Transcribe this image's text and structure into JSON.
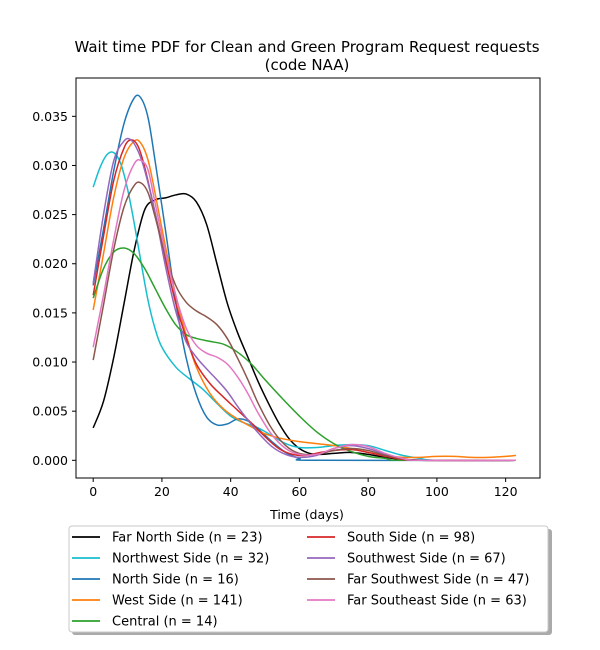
{
  "chart_data": {
    "type": "line",
    "title_line1": "Wait time PDF for Clean and Green Program Request  requests",
    "title_line2": "(code NAA)",
    "xlabel": "Time (days)",
    "ylabel": "",
    "xlim": [
      -5,
      130
    ],
    "ylim": [
      -0.0018,
      0.0389
    ],
    "xticks": [
      0,
      20,
      40,
      60,
      80,
      100,
      120
    ],
    "yticks": [
      0.0,
      0.005,
      0.01,
      0.015,
      0.02,
      0.025,
      0.03,
      0.035
    ],
    "ytick_labels": [
      "0.000",
      "0.005",
      "0.010",
      "0.015",
      "0.020",
      "0.025",
      "0.030",
      "0.035"
    ],
    "grid": false,
    "legend_position": "below",
    "legend_columns": 2,
    "series": [
      {
        "name": "Far North Side (n = 23)",
        "color": "#000000",
        "points": [
          [
            0,
            0.0033
          ],
          [
            3,
            0.006
          ],
          [
            6,
            0.0105
          ],
          [
            9,
            0.016
          ],
          [
            12,
            0.0215
          ],
          [
            15,
            0.0255
          ],
          [
            18,
            0.0265
          ],
          [
            21,
            0.0267
          ],
          [
            24,
            0.027
          ],
          [
            27,
            0.0271
          ],
          [
            30,
            0.0263
          ],
          [
            33,
            0.024
          ],
          [
            36,
            0.02
          ],
          [
            39,
            0.016
          ],
          [
            42,
            0.013
          ],
          [
            45,
            0.0105
          ],
          [
            48,
            0.008
          ],
          [
            51,
            0.0058
          ],
          [
            54,
            0.0038
          ],
          [
            57,
            0.0022
          ],
          [
            60,
            0.0012
          ],
          [
            63,
            0.0007
          ],
          [
            66,
            0.0006
          ],
          [
            70,
            0.0007
          ],
          [
            75,
            0.0008
          ],
          [
            80,
            0.0006
          ],
          [
            85,
            0.0003
          ],
          [
            90,
            0.0001
          ],
          [
            100,
            0.0
          ],
          [
            123,
            0.0
          ]
        ]
      },
      {
        "name": "Northwest Side (n = 32)",
        "color": "#17becf",
        "points": [
          [
            0,
            0.0278
          ],
          [
            2,
            0.0298
          ],
          [
            4,
            0.0311
          ],
          [
            6,
            0.0313
          ],
          [
            8,
            0.0302
          ],
          [
            10,
            0.0276
          ],
          [
            12,
            0.024
          ],
          [
            14,
            0.02
          ],
          [
            16,
            0.0162
          ],
          [
            18,
            0.0134
          ],
          [
            20,
            0.0115
          ],
          [
            24,
            0.0095
          ],
          [
            28,
            0.0083
          ],
          [
            32,
            0.0072
          ],
          [
            36,
            0.0058
          ],
          [
            40,
            0.0045
          ],
          [
            44,
            0.0038
          ],
          [
            48,
            0.0033
          ],
          [
            52,
            0.0025
          ],
          [
            56,
            0.0017
          ],
          [
            60,
            0.0013
          ],
          [
            65,
            0.0013
          ],
          [
            70,
            0.0015
          ],
          [
            75,
            0.0016
          ],
          [
            80,
            0.0015
          ],
          [
            85,
            0.001
          ],
          [
            90,
            0.0005
          ],
          [
            95,
            0.0002
          ],
          [
            100,
            0.0
          ],
          [
            123,
            0.0
          ]
        ]
      },
      {
        "name": "North Side (n = 16)",
        "color": "#1f77b4",
        "points": [
          [
            0,
            0.0178
          ],
          [
            3,
            0.0235
          ],
          [
            6,
            0.0295
          ],
          [
            9,
            0.0343
          ],
          [
            12,
            0.0369
          ],
          [
            14,
            0.0368
          ],
          [
            16,
            0.0348
          ],
          [
            18,
            0.0305
          ],
          [
            21,
            0.0235
          ],
          [
            24,
            0.0162
          ],
          [
            27,
            0.0105
          ],
          [
            30,
            0.0067
          ],
          [
            33,
            0.0044
          ],
          [
            36,
            0.0036
          ],
          [
            39,
            0.0037
          ],
          [
            42,
            0.0042
          ],
          [
            45,
            0.004
          ],
          [
            48,
            0.0032
          ],
          [
            52,
            0.0019
          ],
          [
            56,
            0.0008
          ],
          [
            60,
            0.0002
          ],
          [
            65,
            0.0
          ],
          [
            123,
            0.0
          ]
        ]
      },
      {
        "name": "West Side (n = 141)",
        "color": "#ff7f0e",
        "points": [
          [
            0,
            0.0153
          ],
          [
            3,
            0.021
          ],
          [
            6,
            0.0268
          ],
          [
            9,
            0.0308
          ],
          [
            12,
            0.0325
          ],
          [
            14,
            0.0322
          ],
          [
            16,
            0.0305
          ],
          [
            18,
            0.0272
          ],
          [
            21,
            0.0218
          ],
          [
            24,
            0.0168
          ],
          [
            27,
            0.0128
          ],
          [
            30,
            0.0095
          ],
          [
            34,
            0.0068
          ],
          [
            38,
            0.0052
          ],
          [
            42,
            0.0042
          ],
          [
            46,
            0.0034
          ],
          [
            50,
            0.0027
          ],
          [
            55,
            0.0022
          ],
          [
            60,
            0.0019
          ],
          [
            65,
            0.0017
          ],
          [
            70,
            0.0015
          ],
          [
            75,
            0.0012
          ],
          [
            80,
            0.0008
          ],
          [
            85,
            0.0005
          ],
          [
            90,
            0.0003
          ],
          [
            95,
            0.0003
          ],
          [
            100,
            0.0004
          ],
          [
            105,
            0.0004
          ],
          [
            110,
            0.0003
          ],
          [
            115,
            0.0003
          ],
          [
            120,
            0.0004
          ],
          [
            123,
            0.0005
          ]
        ]
      },
      {
        "name": "Central (n = 14)",
        "color": "#2ca02c",
        "points": [
          [
            0,
            0.0165
          ],
          [
            3,
            0.0195
          ],
          [
            6,
            0.0212
          ],
          [
            9,
            0.0216
          ],
          [
            12,
            0.021
          ],
          [
            15,
            0.0195
          ],
          [
            18,
            0.0175
          ],
          [
            21,
            0.0155
          ],
          [
            24,
            0.0138
          ],
          [
            27,
            0.0128
          ],
          [
            30,
            0.0124
          ],
          [
            34,
            0.0121
          ],
          [
            38,
            0.0118
          ],
          [
            42,
            0.011
          ],
          [
            46,
            0.0098
          ],
          [
            50,
            0.0082
          ],
          [
            55,
            0.0063
          ],
          [
            60,
            0.0045
          ],
          [
            65,
            0.0029
          ],
          [
            70,
            0.0017
          ],
          [
            75,
            0.0009
          ],
          [
            80,
            0.0004
          ],
          [
            85,
            0.0002
          ],
          [
            90,
            0.0
          ],
          [
            123,
            0.0
          ]
        ]
      },
      {
        "name": "South Side (n = 98)",
        "color": "#d62728",
        "points": [
          [
            0,
            0.0168
          ],
          [
            3,
            0.0228
          ],
          [
            6,
            0.0285
          ],
          [
            9,
            0.0318
          ],
          [
            11,
            0.0326
          ],
          [
            13,
            0.032
          ],
          [
            15,
            0.0298
          ],
          [
            18,
            0.0252
          ],
          [
            21,
            0.0205
          ],
          [
            24,
            0.016
          ],
          [
            27,
            0.0125
          ],
          [
            30,
            0.0098
          ],
          [
            34,
            0.0078
          ],
          [
            38,
            0.0064
          ],
          [
            42,
            0.0051
          ],
          [
            46,
            0.0038
          ],
          [
            50,
            0.0024
          ],
          [
            54,
            0.0012
          ],
          [
            58,
            0.0006
          ],
          [
            62,
            0.0005
          ],
          [
            66,
            0.0008
          ],
          [
            70,
            0.001
          ],
          [
            75,
            0.0011
          ],
          [
            80,
            0.0008
          ],
          [
            85,
            0.0004
          ],
          [
            90,
            0.0001
          ],
          [
            95,
            0.0
          ],
          [
            123,
            0.0
          ]
        ]
      },
      {
        "name": "Southwest Side (n = 67)",
        "color": "#9467bd",
        "points": [
          [
            0,
            0.018
          ],
          [
            3,
            0.025
          ],
          [
            6,
            0.0305
          ],
          [
            9,
            0.0325
          ],
          [
            11,
            0.0326
          ],
          [
            13,
            0.0315
          ],
          [
            15,
            0.0295
          ],
          [
            18,
            0.0252
          ],
          [
            21,
            0.0198
          ],
          [
            24,
            0.0152
          ],
          [
            27,
            0.0121
          ],
          [
            30,
            0.0105
          ],
          [
            33,
            0.0093
          ],
          [
            36,
            0.0082
          ],
          [
            39,
            0.007
          ],
          [
            42,
            0.0055
          ],
          [
            45,
            0.0041
          ],
          [
            48,
            0.0028
          ],
          [
            52,
            0.0014
          ],
          [
            56,
            0.0006
          ],
          [
            60,
            0.0003
          ],
          [
            65,
            0.0005
          ],
          [
            70,
            0.0012
          ],
          [
            75,
            0.0015
          ],
          [
            80,
            0.0012
          ],
          [
            85,
            0.0006
          ],
          [
            90,
            0.0002
          ],
          [
            95,
            0.0
          ],
          [
            123,
            0.0
          ]
        ]
      },
      {
        "name": "Far Southwest Side (n = 47)",
        "color": "#8c564b",
        "points": [
          [
            0,
            0.0102
          ],
          [
            3,
            0.0158
          ],
          [
            6,
            0.0215
          ],
          [
            9,
            0.0258
          ],
          [
            12,
            0.028
          ],
          [
            14,
            0.0282
          ],
          [
            16,
            0.0272
          ],
          [
            18,
            0.0248
          ],
          [
            21,
            0.0208
          ],
          [
            24,
            0.0178
          ],
          [
            27,
            0.0161
          ],
          [
            30,
            0.0152
          ],
          [
            33,
            0.0146
          ],
          [
            36,
            0.0138
          ],
          [
            39,
            0.0124
          ],
          [
            42,
            0.0104
          ],
          [
            45,
            0.0082
          ],
          [
            48,
            0.0058
          ],
          [
            52,
            0.0032
          ],
          [
            56,
            0.0015
          ],
          [
            60,
            0.0007
          ],
          [
            65,
            0.0006
          ],
          [
            70,
            0.001
          ],
          [
            75,
            0.0012
          ],
          [
            80,
            0.001
          ],
          [
            85,
            0.0005
          ],
          [
            90,
            0.0002
          ],
          [
            95,
            0.0
          ],
          [
            123,
            0.0
          ]
        ]
      },
      {
        "name": "Far Southeast Side (n = 63)",
        "color": "#e377c2",
        "points": [
          [
            0,
            0.0115
          ],
          [
            3,
            0.0168
          ],
          [
            6,
            0.0225
          ],
          [
            9,
            0.0275
          ],
          [
            12,
            0.0302
          ],
          [
            14,
            0.0305
          ],
          [
            16,
            0.0295
          ],
          [
            18,
            0.0262
          ],
          [
            21,
            0.0212
          ],
          [
            24,
            0.0168
          ],
          [
            27,
            0.0135
          ],
          [
            30,
            0.0117
          ],
          [
            33,
            0.0109
          ],
          [
            36,
            0.0105
          ],
          [
            39,
            0.0098
          ],
          [
            42,
            0.0085
          ],
          [
            45,
            0.0068
          ],
          [
            48,
            0.0048
          ],
          [
            52,
            0.0026
          ],
          [
            56,
            0.0012
          ],
          [
            60,
            0.0006
          ],
          [
            65,
            0.0006
          ],
          [
            70,
            0.0012
          ],
          [
            75,
            0.0016
          ],
          [
            80,
            0.0014
          ],
          [
            85,
            0.0007
          ],
          [
            90,
            0.0002
          ],
          [
            95,
            0.0
          ],
          [
            123,
            0.0
          ]
        ]
      }
    ]
  }
}
